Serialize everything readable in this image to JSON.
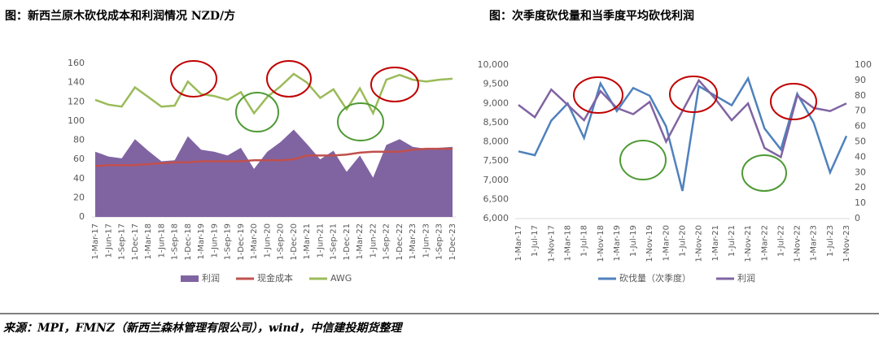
{
  "chart_data": [
    {
      "type": "line",
      "title": "图：新西兰原木砍伐成本和利润情况 NZD/方",
      "categories": [
        "1-Mar-17",
        "1-Jun-17",
        "1-Sep-17",
        "1-Dec-17",
        "1-Mar-18",
        "1-Jun-18",
        "1-Sep-18",
        "1-Dec-18",
        "1-Mar-19",
        "1-Jun-19",
        "1-Sep-19",
        "1-Dec-19",
        "1-Mar-20",
        "1-Jun-20",
        "1-Sep-20",
        "1-Dec-20",
        "1-Mar-21",
        "1-Jun-21",
        "1-Sep-21",
        "1-Dec-21",
        "1-Mar-22",
        "1-Jun-22",
        "1-Sep-22",
        "1-Dec-22",
        "1-Mar-23",
        "1-Jun-23",
        "1-Sep-23",
        "1-Dec-23"
      ],
      "series": [
        {
          "name": "利润",
          "type": "area",
          "color": "#8064a2",
          "values": [
            68,
            63,
            61,
            81,
            69,
            58,
            59,
            84,
            70,
            68,
            64,
            72,
            50,
            68,
            78,
            91,
            76,
            60,
            69,
            47,
            64,
            41,
            75,
            81,
            73,
            71,
            72,
            73
          ]
        },
        {
          "name": "现金成本",
          "color": "#c0504d",
          "values": [
            53,
            54,
            54,
            54,
            55,
            56,
            57,
            57,
            58,
            58,
            58,
            58,
            59,
            59,
            59,
            60,
            64,
            64,
            64,
            65,
            67,
            68,
            68,
            68,
            70,
            71,
            71,
            71
          ]
        },
        {
          "name": "AWG",
          "color": "#9bbb59",
          "values": [
            122,
            117,
            115,
            135,
            125,
            115,
            116,
            141,
            128,
            126,
            122,
            130,
            108,
            125,
            136,
            149,
            140,
            124,
            133,
            112,
            134,
            108,
            143,
            148,
            143,
            141,
            143,
            144
          ]
        }
      ],
      "ylim": [
        0,
        160
      ],
      "yticks": [
        0,
        20,
        40,
        60,
        80,
        100,
        120,
        140,
        160
      ],
      "legend": "bottom"
    },
    {
      "type": "line",
      "title": "图：次季度砍伐量和当季度平均砍伐利润",
      "categories": [
        "1-Mar-17",
        "1-Jul-17",
        "1-Nov-17",
        "1-Mar-18",
        "1-Jul-18",
        "1-Nov-18",
        "1-Mar-19",
        "1-Jul-19",
        "1-Nov-19",
        "1-Mar-20",
        "1-Jul-20",
        "1-Nov-20",
        "1-Mar-21",
        "1-Jul-21",
        "1-Nov-21",
        "1-Mar-22",
        "1-Jul-22",
        "1-Nov-22",
        "1-Mar-23",
        "1-Jul-23",
        "1-Nov-23"
      ],
      "series": [
        {
          "name": "砍伐量（次季度）",
          "color": "#4f81bd",
          "values": [
            7750,
            7650,
            8550,
            9000,
            8100,
            9520,
            8800,
            9400,
            9200,
            8400,
            6720,
            9450,
            9200,
            8950,
            9650,
            8350,
            7800,
            9250,
            8500,
            7200,
            8150
          ]
        },
        {
          "name": "利润",
          "color": "#8064a2",
          "axis": "y2",
          "values": [
            74,
            66,
            84,
            74,
            64,
            83,
            72,
            68,
            76,
            50,
            70,
            90,
            78,
            64,
            75,
            46,
            40,
            80,
            72,
            70,
            75
          ]
        }
      ],
      "ylim": [
        6000,
        10000
      ],
      "yticks": [
        {
          "value": 6000,
          "label": "6,000"
        },
        {
          "value": 6500,
          "label": "6,500"
        },
        {
          "value": 7000,
          "label": "7,000"
        },
        {
          "value": 7500,
          "label": "7,500"
        },
        {
          "value": 8000,
          "label": "8,000"
        },
        {
          "value": 8500,
          "label": "8,500"
        },
        {
          "value": 9000,
          "label": "9,000"
        },
        {
          "value": 9500,
          "label": "9,500"
        },
        {
          "value": 10000,
          "label": "10,000"
        }
      ],
      "y2lim": [
        0,
        100
      ],
      "y2ticks": [
        0,
        10,
        20,
        30,
        40,
        50,
        60,
        70,
        80,
        90,
        100
      ],
      "legend": "bottom"
    }
  ],
  "source": "来源：MPI，FMNZ（新西兰森林管理有限公司），wind，中信建投期货整理"
}
